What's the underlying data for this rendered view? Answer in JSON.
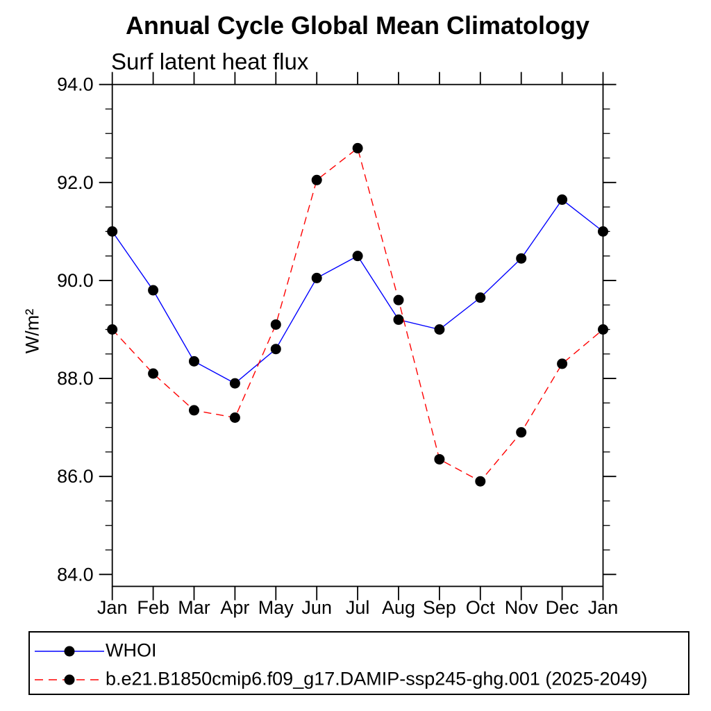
{
  "header": {
    "title": "Annual Cycle Global Mean Climatology",
    "subtitle": "Surf latent heat flux"
  },
  "chart_data": {
    "type": "line",
    "title": "Annual Cycle Global Mean Climatology",
    "subtitle": "Surf latent heat flux",
    "xlabel": "",
    "ylabel": "W/m²",
    "categories": [
      "Jan",
      "Feb",
      "Mar",
      "Apr",
      "May",
      "Jun",
      "Jul",
      "Aug",
      "Sep",
      "Oct",
      "Nov",
      "Dec",
      "Jan"
    ],
    "series": [
      {
        "name": "WHOI",
        "color": "#0000ff",
        "line_style": "solid",
        "marker": "filled-circle",
        "marker_color": "#000000",
        "values": [
          91.0,
          89.8,
          88.35,
          87.9,
          88.6,
          90.05,
          90.5,
          89.2,
          89.0,
          89.65,
          90.45,
          91.65,
          91.0
        ]
      },
      {
        "name": "b.e21.B1850cmip6.f09_g17.DAMIP-ssp245-ghg.001 (2025-2049)",
        "color": "#ff0000",
        "line_style": "dashed",
        "marker": "filled-circle",
        "marker_color": "#000000",
        "values": [
          89.0,
          88.1,
          87.35,
          87.2,
          89.1,
          92.05,
          92.7,
          89.6,
          86.35,
          85.9,
          86.9,
          88.3,
          89.0
        ]
      }
    ],
    "ylim": [
      84.0,
      94.0
    ],
    "ytick_labels": [
      "94.0",
      "92.0",
      "90.0",
      "88.0",
      "86.0",
      "84.0"
    ],
    "yticks_major": [
      94.0,
      92.0,
      90.0,
      88.0,
      86.0,
      84.0
    ],
    "ytick_minor_step": 0.5,
    "grid": false,
    "legend_position": "bottom",
    "axis_color": "#000000",
    "text_color": "#000000"
  },
  "legend": {
    "entries": [
      {
        "label": "WHOI"
      },
      {
        "label": "b.e21.B1850cmip6.f09_g17.DAMIP-ssp245-ghg.001 (2025-2049)"
      }
    ]
  }
}
